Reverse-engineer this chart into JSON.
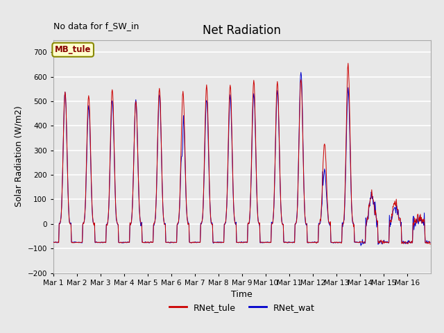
{
  "title": "Net Radiation",
  "xlabel": "Time",
  "ylabel": "Solar Radiation (W/m2)",
  "note": "No data for f_SW_in",
  "legend_label1": "RNet_tule",
  "legend_label2": "RNet_wat",
  "box_label": "MB_tule",
  "ylim": [
    -200,
    750
  ],
  "yticks": [
    -200,
    -100,
    0,
    100,
    200,
    300,
    400,
    500,
    600,
    700
  ],
  "color_tule": "#cc0000",
  "color_wat": "#0000cc",
  "fig_bg": "#e8e8e8",
  "plot_bg": "#e8e8e8",
  "n_days": 16,
  "dt_hours": 0.5,
  "day_peaks_tule": [
    540,
    530,
    550,
    500,
    555,
    540,
    565,
    570,
    585,
    580,
    590,
    330,
    650,
    115,
    90,
    30
  ],
  "day_peaks_wat": [
    535,
    475,
    505,
    505,
    530,
    470,
    510,
    520,
    530,
    548,
    625,
    215,
    550,
    110,
    65,
    20
  ],
  "night_tule": -75,
  "night_wat": -75,
  "sunrise": 6.0,
  "sunset": 18.0,
  "sharpness": 4.0
}
